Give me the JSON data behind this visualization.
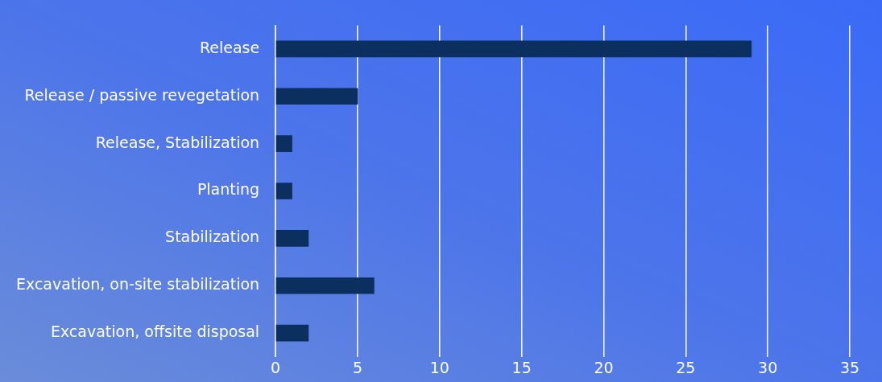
{
  "chart_data": {
    "type": "bar",
    "orientation": "horizontal",
    "categories": [
      "Release",
      "Release / passive revegetation",
      "Release, Stabilization",
      "Planting",
      "Stabilization",
      "Excavation, on-site stabilization",
      "Excavation, offsite disposal"
    ],
    "values": [
      29,
      5,
      1,
      1,
      2,
      6,
      2
    ],
    "color": "#0b2f5f",
    "xlim": [
      0,
      35
    ],
    "xticks": [
      0,
      5,
      10,
      15,
      20,
      25,
      30,
      35
    ],
    "grid": "x"
  }
}
